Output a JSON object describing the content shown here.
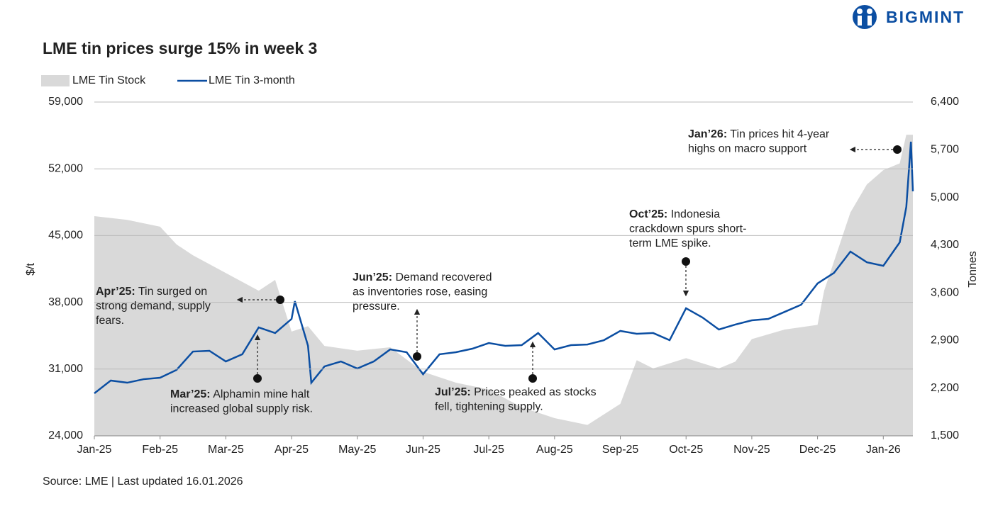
{
  "brand": "BIGMINT",
  "chart_data": {
    "type": "line",
    "title": "LME tin prices surge 15% in week 3",
    "source": "Source: LME | Last updated 16.01.2026",
    "ylabel": "$/t",
    "y2label": "Tonnes",
    "grid": true,
    "legend": "top-left",
    "xlim": [
      0,
      12.45
    ],
    "xticks": [
      {
        "value": 0,
        "label": "Jan-25"
      },
      {
        "value": 1,
        "label": "Feb-25"
      },
      {
        "value": 2,
        "label": "Mar-25"
      },
      {
        "value": 3,
        "label": "Apr-25"
      },
      {
        "value": 4,
        "label": "May-25"
      },
      {
        "value": 5,
        "label": "Jun-25"
      },
      {
        "value": 6,
        "label": "Jul-25"
      },
      {
        "value": 7,
        "label": "Aug-25"
      },
      {
        "value": 8,
        "label": "Sep-25"
      },
      {
        "value": 9,
        "label": "Oct-25"
      },
      {
        "value": 10,
        "label": "Nov-25"
      },
      {
        "value": 11,
        "label": "Dec-25"
      },
      {
        "value": 12,
        "label": "Jan-26"
      }
    ],
    "ylim": [
      24000,
      59000
    ],
    "yticks": [
      {
        "value": 24000,
        "label": "24,000"
      },
      {
        "value": 31000,
        "label": "31,000"
      },
      {
        "value": 38000,
        "label": "38,000"
      },
      {
        "value": 45000,
        "label": "45,000"
      },
      {
        "value": 52000,
        "label": "52,000"
      },
      {
        "value": 59000,
        "label": "59,000"
      }
    ],
    "y2lim": [
      1500,
      6400
    ],
    "y2ticks": [
      {
        "value": 1500,
        "label": "1,500"
      },
      {
        "value": 2200,
        "label": "2,200"
      },
      {
        "value": 2900,
        "label": "2,900"
      },
      {
        "value": 3600,
        "label": "3,600"
      },
      {
        "value": 4300,
        "label": "4,300"
      },
      {
        "value": 5000,
        "label": "5,000"
      },
      {
        "value": 5700,
        "label": "5,700"
      },
      {
        "value": 6400,
        "label": "6,400"
      }
    ],
    "series": [
      {
        "name": "LME Tin Stock",
        "color": "#d9d9d9",
        "style": "area",
        "axis": "y2",
        "x": [
          0,
          0.5,
          1,
          1.25,
          1.5,
          2,
          2.5,
          2.75,
          3,
          3.25,
          3.5,
          4,
          4.5,
          5,
          5.5,
          6,
          6.5,
          7,
          7.5,
          8,
          8.25,
          8.5,
          9,
          9.5,
          9.75,
          10,
          10.5,
          11,
          11.1,
          11.5,
          11.75,
          12,
          12.25,
          12.35,
          12.45
        ],
        "values": [
          4725,
          4670,
          4570,
          4310,
          4150,
          3890,
          3630,
          3790,
          3030,
          3110,
          2820,
          2750,
          2800,
          2440,
          2280,
          2180,
          1920,
          1760,
          1660,
          1970,
          2610,
          2490,
          2640,
          2490,
          2590,
          2920,
          3060,
          3130,
          3630,
          4780,
          5190,
          5400,
          5500,
          5920,
          5920
        ]
      },
      {
        "name": "LME Tin 3-month",
        "color": "#0b4ea2",
        "style": "line",
        "axis": "y",
        "x": [
          0,
          0.25,
          0.5,
          0.75,
          1,
          1.25,
          1.5,
          1.75,
          2,
          2.25,
          2.5,
          2.75,
          3,
          3.05,
          3.25,
          3.3,
          3.5,
          3.75,
          4,
          4.25,
          4.5,
          4.75,
          5,
          5.25,
          5.5,
          5.75,
          6,
          6.25,
          6.5,
          6.75,
          7,
          7.25,
          7.5,
          7.75,
          8,
          8.25,
          8.5,
          8.75,
          9,
          9.25,
          9.5,
          9.75,
          10,
          10.25,
          10.5,
          10.75,
          11,
          11.25,
          11.5,
          11.75,
          12,
          12.25,
          12.35,
          12.42,
          12.45
        ],
        "values": [
          28460,
          29800,
          29570,
          29940,
          30090,
          30910,
          32840,
          32920,
          31800,
          32550,
          35370,
          34780,
          36260,
          38120,
          33440,
          29570,
          31280,
          31800,
          31060,
          31800,
          33060,
          32770,
          30460,
          32550,
          32770,
          33140,
          33730,
          33440,
          33510,
          34780,
          33060,
          33510,
          33580,
          34030,
          35000,
          34700,
          34780,
          34030,
          37380,
          36410,
          35150,
          35670,
          36110,
          36260,
          37000,
          37750,
          39980,
          41090,
          43320,
          42200,
          41830,
          44290,
          48000,
          54840,
          49640
        ]
      }
    ],
    "annotations": [
      {
        "label": "Apr’25:",
        "lines": [
          " Tin surged on",
          "strong demand, supply",
          "fears."
        ]
      },
      {
        "label": "Mar’25:",
        "lines": [
          " Alphamin mine halt",
          "increased global supply risk."
        ]
      },
      {
        "label": "Jun’25:",
        "lines": [
          " Demand recovered",
          "as inventories rose, easing",
          "pressure."
        ]
      },
      {
        "label": "Jul’25:",
        "lines": [
          " Prices peaked as stocks",
          "fell, tightening supply."
        ]
      },
      {
        "label": "Oct’25:",
        "lines": [
          " Indonesia",
          "crackdown spurs short-",
          "term LME spike."
        ]
      },
      {
        "label": "Jan’26:",
        "lines": [
          " Tin prices hit 4-year",
          "highs on macro support"
        ]
      }
    ]
  }
}
